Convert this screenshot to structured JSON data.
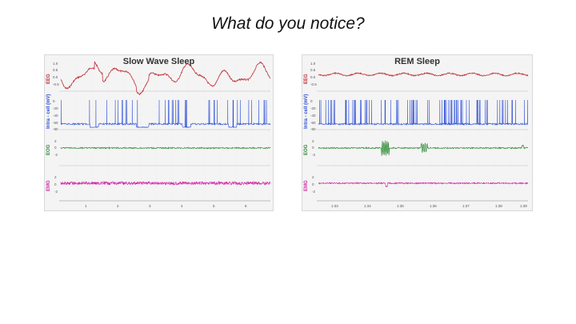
{
  "slide": {
    "title": "What do you notice?"
  },
  "panels": [
    {
      "id": "sws",
      "title": "Slow Wave Sleep",
      "channels": [
        {
          "name": "EEG",
          "color": "#c0303a"
        },
        {
          "name": "Intra - cell (mV)",
          "color": "#2c4fd8"
        },
        {
          "name": "EOG",
          "color": "#2c8a34"
        },
        {
          "name": "EMG",
          "color": "#d12aa8"
        }
      ],
      "xticks": [
        "1",
        "2",
        "3",
        "4",
        "5",
        "6"
      ]
    },
    {
      "id": "rem",
      "title": "REM Sleep",
      "channels": [
        {
          "name": "EEG",
          "color": "#c0303a"
        },
        {
          "name": "Intra - cell (mV)",
          "color": "#2c4fd8"
        },
        {
          "name": "EOG",
          "color": "#2c8a34"
        },
        {
          "name": "EMG",
          "color": "#d12aa8"
        }
      ],
      "xticks": [
        "1:33",
        "1:34",
        "1:35",
        "1:36",
        "1:37",
        "1:38",
        "1:39"
      ]
    }
  ],
  "tick_labels": {
    "eeg": [
      "1.0",
      "0.5",
      "0.0",
      "-0.5"
    ],
    "intra": [
      "0",
      "-20",
      "-40",
      "-60",
      "-80"
    ],
    "eog": [
      "2",
      "0",
      "-2"
    ],
    "emg": [
      "2",
      "0",
      "-2"
    ]
  }
}
